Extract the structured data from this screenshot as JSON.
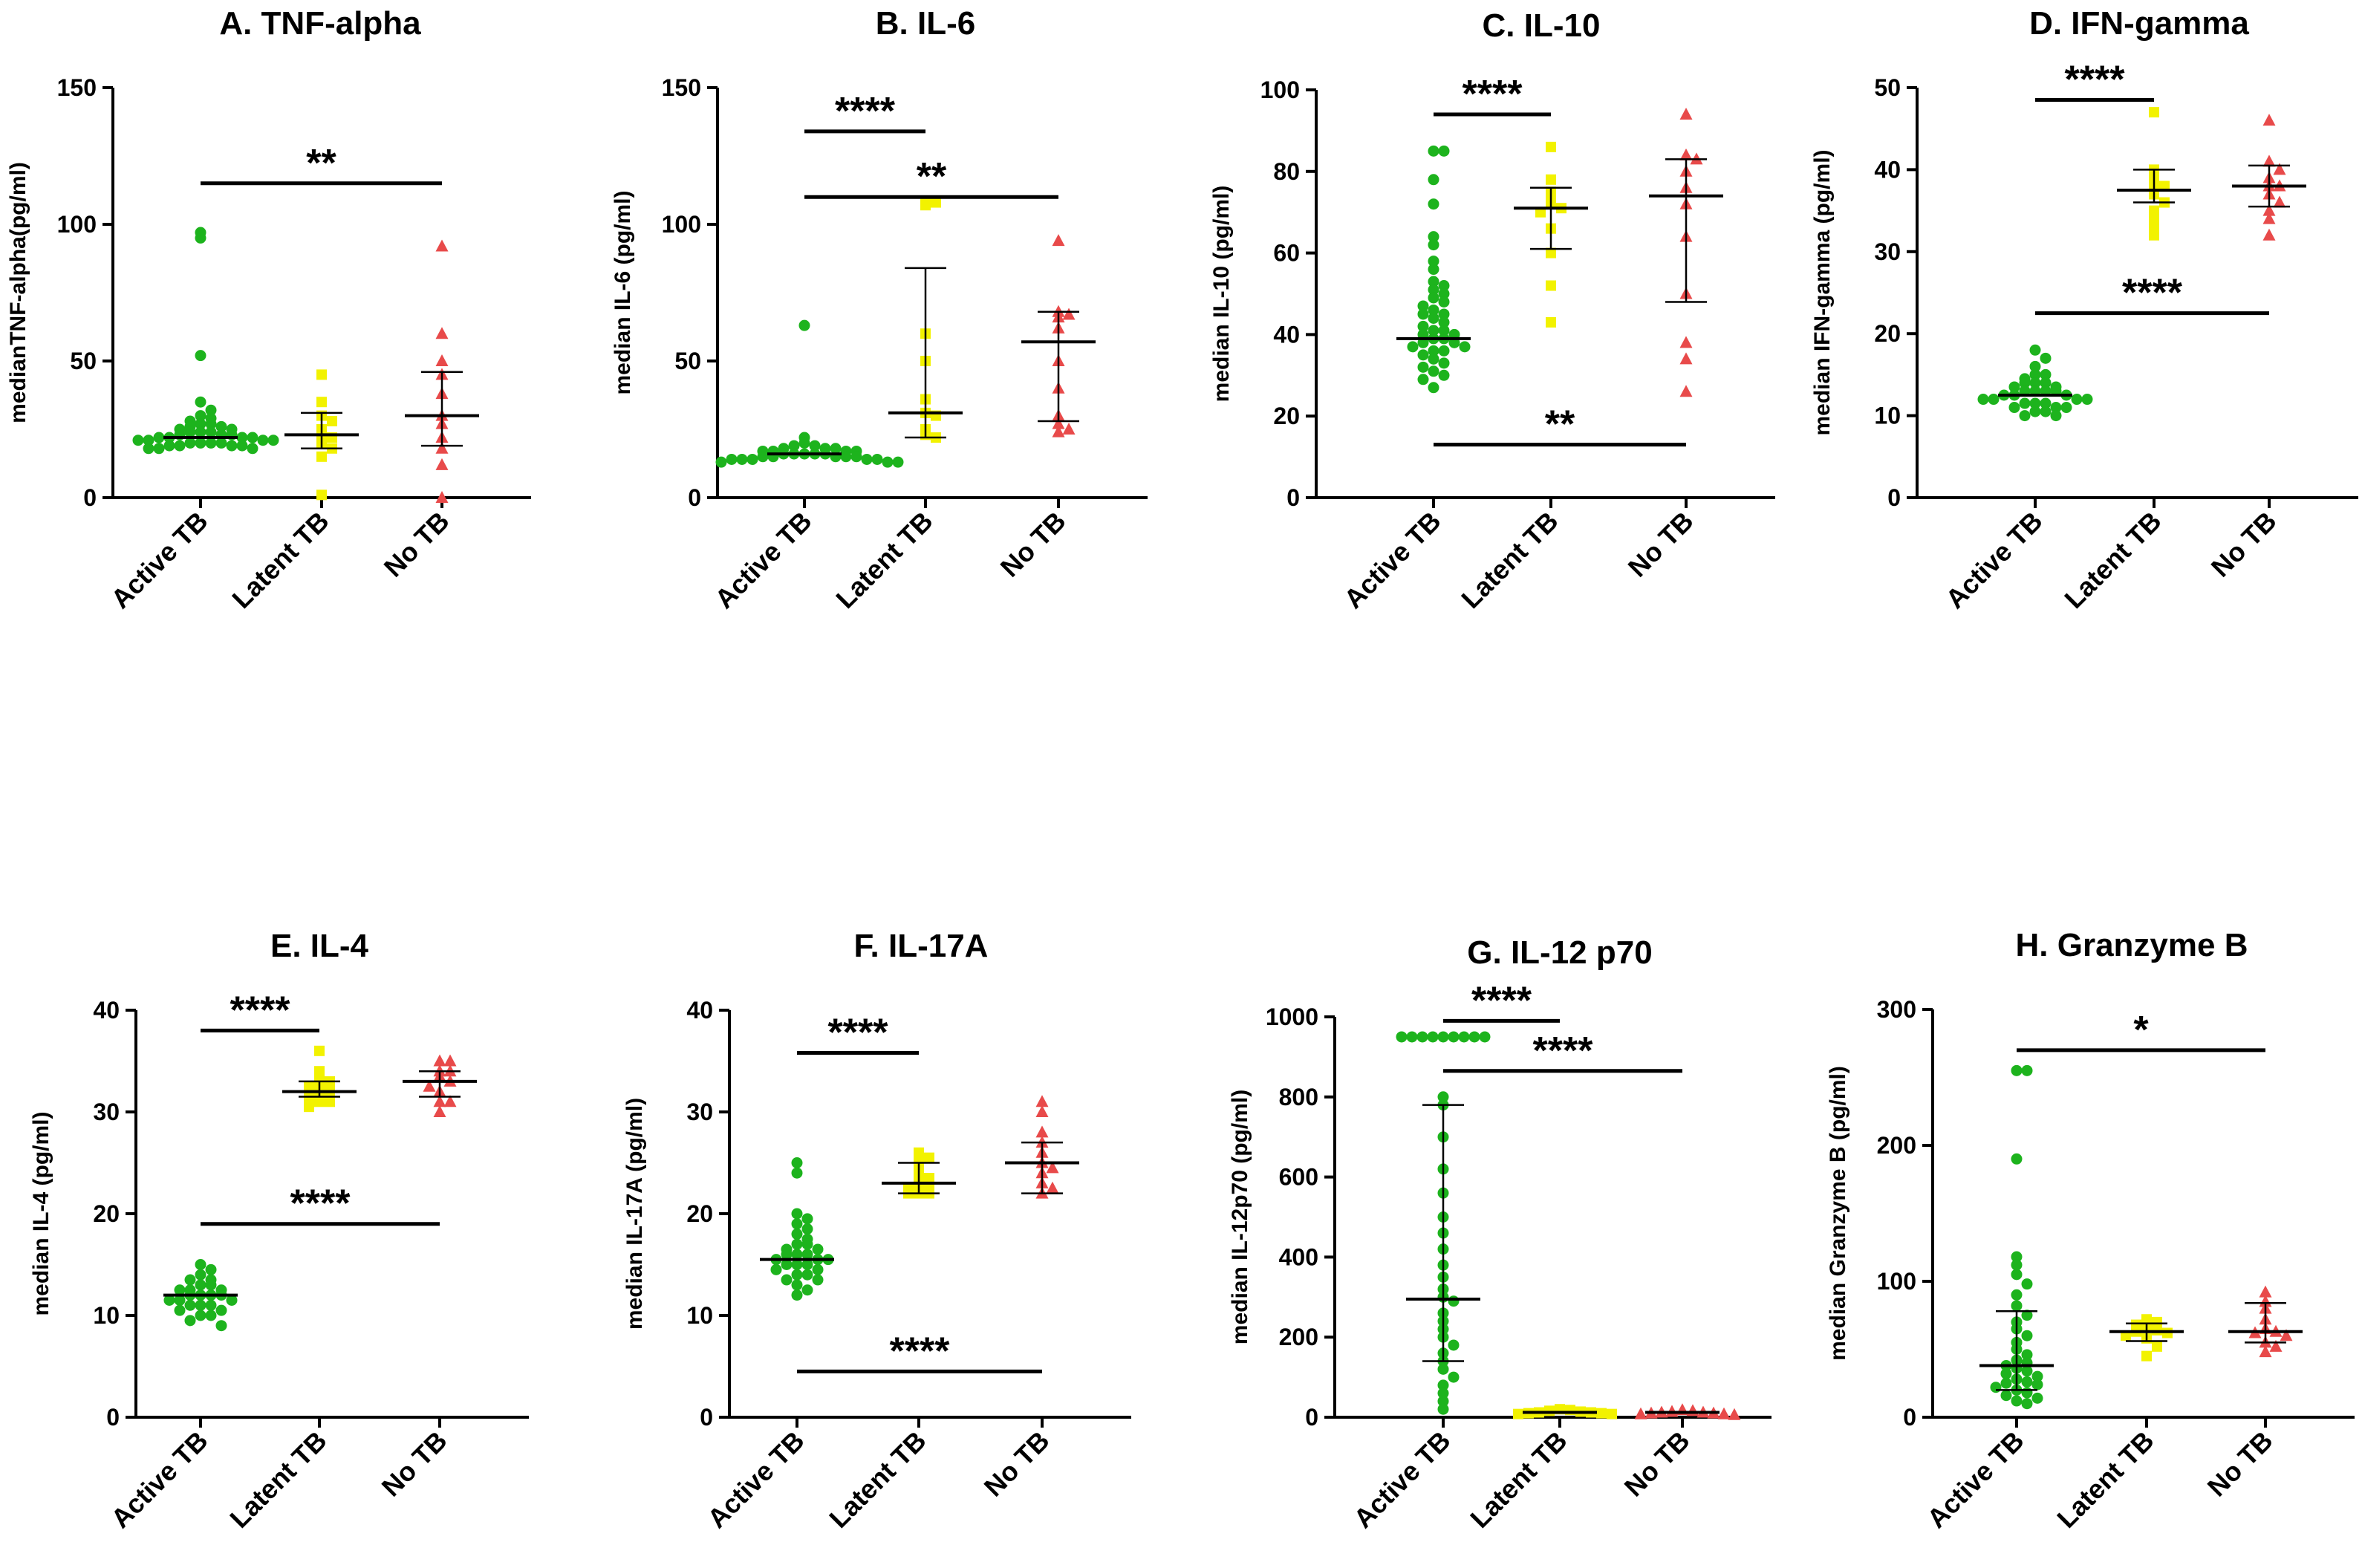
{
  "chart_data": [
    {
      "type": "scatter",
      "title": "A. TNF-alpha",
      "ylabel": "medianTNF-alpha(pg/ml)",
      "ylim": [
        0,
        150
      ],
      "yticks": [
        0,
        50,
        100,
        150
      ],
      "categories": [
        "Active TB",
        "Latent TB",
        "No TB"
      ],
      "colors": [
        "#1db31d",
        "#f2f200",
        "#e84a4a"
      ],
      "series": [
        {
          "name": "Active TB",
          "marker": "circle",
          "median": 22,
          "values": [
            97,
            95,
            52,
            35,
            32,
            30,
            29,
            28,
            27,
            27,
            26,
            26,
            25,
            25,
            24,
            24,
            24,
            23,
            23,
            23,
            22,
            22,
            22,
            22,
            21,
            21,
            21,
            21,
            20,
            20,
            20,
            20,
            19,
            19,
            19,
            19,
            18,
            18,
            18
          ]
        },
        {
          "name": "Latent TB",
          "marker": "square",
          "median": 23,
          "whisker": [
            18,
            31
          ],
          "values": [
            45,
            35,
            30,
            28,
            25,
            23,
            22,
            20,
            18,
            15,
            1
          ]
        },
        {
          "name": "No TB",
          "marker": "triangle",
          "median": 30,
          "whisker": [
            19,
            46
          ],
          "values": [
            92,
            60,
            50,
            45,
            38,
            30,
            27,
            22,
            18,
            12,
            0
          ]
        }
      ],
      "significance": [
        {
          "label": "**",
          "from": "Active TB",
          "to": "No TB",
          "y": 115
        }
      ]
    },
    {
      "type": "scatter",
      "title": "B. IL-6",
      "ylabel": "median IL-6 (pg/ml)",
      "ylim": [
        0,
        150
      ],
      "yticks": [
        0,
        50,
        100,
        150
      ],
      "categories": [
        "Active TB",
        "Latent TB",
        "No TB"
      ],
      "colors": [
        "#1db31d",
        "#f2f200",
        "#e84a4a"
      ],
      "series": [
        {
          "name": "Active TB",
          "marker": "circle",
          "median": 16,
          "values": [
            63,
            22,
            20,
            19,
            19,
            18,
            18,
            18,
            17,
            17,
            17,
            17,
            16,
            16,
            16,
            16,
            16,
            15,
            15,
            15,
            15,
            15,
            14,
            14,
            14,
            14,
            14,
            13,
            13,
            13
          ]
        },
        {
          "name": "Latent TB",
          "marker": "square",
          "median": 31,
          "whisker": [
            22,
            84
          ],
          "values": [
            108,
            108,
            107,
            60,
            50,
            36,
            31,
            30,
            25,
            23,
            22
          ]
        },
        {
          "name": "No TB",
          "marker": "triangle",
          "median": 57,
          "whisker": [
            28,
            68
          ],
          "values": [
            94,
            68,
            67,
            66,
            62,
            50,
            40,
            30,
            27,
            25,
            24
          ]
        }
      ],
      "significance": [
        {
          "label": "****",
          "from": "Active TB",
          "to": "Latent TB",
          "y": 134
        },
        {
          "label": "**",
          "from": "Active TB",
          "to": "No TB",
          "y": 110
        }
      ]
    },
    {
      "type": "scatter",
      "title": "C.  IL-10",
      "ylabel": "median IL-10 (pg/ml)",
      "ylim": [
        0,
        100
      ],
      "yticks": [
        0,
        20,
        40,
        60,
        80,
        100
      ],
      "categories": [
        "Active TB",
        "Latent TB",
        "No TB"
      ],
      "colors": [
        "#1db31d",
        "#f2f200",
        "#e84a4a"
      ],
      "series": [
        {
          "name": "Active TB",
          "marker": "circle",
          "median": 39,
          "values": [
            85,
            85,
            78,
            72,
            64,
            62,
            58,
            56,
            53,
            52,
            51,
            50,
            49,
            48,
            47,
            46,
            45,
            45,
            44,
            43,
            42,
            41,
            41,
            40,
            40,
            39,
            39,
            38,
            38,
            37,
            37,
            36,
            36,
            35,
            34,
            33,
            32,
            31,
            30,
            29,
            27
          ]
        },
        {
          "name": "Latent TB",
          "marker": "square",
          "median": 71,
          "whisker": [
            61,
            76
          ],
          "values": [
            86,
            78,
            75,
            73,
            72,
            71,
            70,
            66,
            60,
            52,
            43
          ]
        },
        {
          "name": "No TB",
          "marker": "triangle",
          "median": 74,
          "whisker": [
            48,
            83
          ],
          "values": [
            94,
            84,
            83,
            80,
            76,
            72,
            64,
            50,
            38,
            34,
            26
          ]
        }
      ],
      "significance": [
        {
          "label": "****",
          "from": "Active TB",
          "to": "Latent TB",
          "y": 94
        },
        {
          "label": "**",
          "from": "Active TB",
          "to": "No TB",
          "y": 13
        }
      ]
    },
    {
      "type": "scatter",
      "title": "D. IFN-gamma",
      "ylabel": "median IFN-gamma (pg/ml)",
      "ylim": [
        0,
        50
      ],
      "yticks": [
        0,
        10,
        20,
        30,
        40,
        50
      ],
      "categories": [
        "Active TB",
        "Latent TB",
        "No TB"
      ],
      "colors": [
        "#1db31d",
        "#f2f200",
        "#e84a4a"
      ],
      "series": [
        {
          "name": "Active TB",
          "marker": "circle",
          "median": 12.5,
          "values": [
            18,
            17,
            16,
            15,
            15,
            14.5,
            14,
            14,
            14,
            13.5,
            13.5,
            13,
            13,
            13,
            13,
            12.5,
            12.5,
            12.5,
            12,
            12,
            12,
            12,
            11.5,
            11.5,
            11.5,
            11,
            11,
            11,
            10.5,
            10.5,
            10,
            10
          ]
        },
        {
          "name": "Latent TB",
          "marker": "square",
          "median": 37.5,
          "whisker": [
            36,
            40
          ],
          "values": [
            47,
            40,
            39,
            38,
            38,
            37,
            36,
            35,
            34,
            33,
            32
          ]
        },
        {
          "name": "No TB",
          "marker": "triangle",
          "median": 38,
          "whisker": [
            35.5,
            40.5
          ],
          "values": [
            46,
            41,
            40,
            39,
            38,
            38,
            37,
            36,
            35,
            34,
            32
          ]
        }
      ],
      "significance": [
        {
          "label": "****",
          "from": "Active TB",
          "to": "Latent TB",
          "y": 48.5
        },
        {
          "label": "****",
          "from": "Active TB",
          "to": "No TB",
          "y": 22.5
        }
      ]
    },
    {
      "type": "scatter",
      "title": "E. IL-4",
      "ylabel": "median IL-4 (pg/ml)",
      "ylim": [
        0,
        40
      ],
      "yticks": [
        0,
        10,
        20,
        30,
        40
      ],
      "categories": [
        "Active TB",
        "Latent TB",
        "No TB"
      ],
      "colors": [
        "#1db31d",
        "#f2f200",
        "#e84a4a"
      ],
      "series": [
        {
          "name": "Active TB",
          "marker": "circle",
          "median": 12,
          "values": [
            15,
            14.5,
            14,
            13.5,
            13.5,
            13,
            13,
            12.5,
            12.5,
            12.5,
            12,
            12,
            12,
            12,
            11.5,
            11.5,
            11.5,
            11,
            11,
            11,
            10.5,
            10.5,
            10,
            10,
            9.5,
            9
          ]
        },
        {
          "name": "Latent TB",
          "marker": "square",
          "median": 32,
          "whisker": [
            31.5,
            33
          ],
          "values": [
            36,
            34,
            33,
            33,
            32.5,
            32,
            32,
            31.5,
            31,
            31,
            30.5
          ]
        },
        {
          "name": "No TB",
          "marker": "triangle",
          "median": 33,
          "whisker": [
            31.5,
            34
          ],
          "values": [
            35,
            35,
            34,
            34,
            33.5,
            33,
            32.5,
            32,
            31,
            31,
            30
          ]
        }
      ],
      "significance": [
        {
          "label": "****",
          "from": "Active TB",
          "to": "Latent TB",
          "y": 38
        },
        {
          "label": "****",
          "from": "Active TB",
          "to": "No TB",
          "y": 19
        }
      ]
    },
    {
      "type": "scatter",
      "title": "F. IL-17A",
      "ylabel": "median IL-17A (pg/ml)",
      "ylim": [
        0,
        40
      ],
      "yticks": [
        0,
        10,
        20,
        30,
        40
      ],
      "categories": [
        "Active TB",
        "Latent TB",
        "No TB"
      ],
      "colors": [
        "#1db31d",
        "#f2f200",
        "#e84a4a"
      ],
      "series": [
        {
          "name": "Active TB",
          "marker": "circle",
          "median": 15.5,
          "values": [
            25,
            24,
            20,
            19.5,
            19,
            18.5,
            18,
            17.5,
            17,
            17,
            16.5,
            16.5,
            16,
            16,
            16,
            15.5,
            15.5,
            15.5,
            15,
            15,
            15,
            14.5,
            14.5,
            14,
            14,
            13.5,
            13.5,
            13,
            12.5,
            12
          ]
        },
        {
          "name": "Latent TB",
          "marker": "square",
          "median": 23,
          "whisker": [
            22,
            25
          ],
          "values": [
            26,
            25.5,
            25,
            24,
            23.5,
            23,
            23,
            22.5,
            22,
            22,
            22
          ]
        },
        {
          "name": "No TB",
          "marker": "triangle",
          "median": 25,
          "whisker": [
            22,
            27
          ],
          "values": [
            31,
            30,
            28,
            27,
            26,
            25,
            24.5,
            24,
            23,
            22.5,
            22
          ]
        }
      ],
      "significance": [
        {
          "label": "****",
          "from": "Active TB",
          "to": "Latent TB",
          "y": 35.8
        },
        {
          "label": "****",
          "from": "Active TB",
          "to": "No TB",
          "y": 4.5
        }
      ]
    },
    {
      "type": "scatter",
      "title": "G. IL-12 p70",
      "ylabel": "median IL-12p70 (pg/ml)",
      "ylim": [
        0,
        1000
      ],
      "yticks": [
        0,
        200,
        400,
        600,
        800,
        1000
      ],
      "categories": [
        "Active TB",
        "Latent TB",
        "No TB"
      ],
      "colors": [
        "#1db31d",
        "#f2f200",
        "#e84a4a"
      ],
      "series": [
        {
          "name": "Active TB",
          "marker": "circle",
          "median": 295,
          "whisker": [
            140,
            780
          ],
          "values": [
            950,
            950,
            950,
            950,
            950,
            950,
            950,
            950,
            950,
            800,
            780,
            700,
            620,
            560,
            500,
            460,
            420,
            380,
            350,
            320,
            300,
            290,
            260,
            240,
            220,
            200,
            180,
            160,
            140,
            120,
            100,
            80,
            60,
            40,
            20
          ]
        },
        {
          "name": "Latent TB",
          "marker": "square",
          "median": 12,
          "values": [
            20,
            18,
            16,
            14,
            12,
            12,
            10,
            10,
            8,
            8
          ]
        },
        {
          "name": "No TB",
          "marker": "triangle",
          "median": 12,
          "values": [
            18,
            16,
            14,
            12,
            12,
            10,
            10,
            8,
            8,
            6
          ]
        }
      ],
      "significance": [
        {
          "label": "****",
          "from": "Active TB",
          "to": "Latent TB",
          "y": 990
        },
        {
          "label": "****",
          "from": "Active TB",
          "to": "No TB",
          "y": 865
        }
      ]
    },
    {
      "type": "scatter",
      "title": "H. Granzyme B",
      "ylabel": "median Granzyme B (pg/ml)",
      "ylim": [
        0,
        300
      ],
      "yticks": [
        0,
        100,
        200,
        300
      ],
      "categories": [
        "Active TB",
        "Latent TB",
        "No TB"
      ],
      "colors": [
        "#1db31d",
        "#f2f200",
        "#e84a4a"
      ],
      "series": [
        {
          "name": "Active TB",
          "marker": "circle",
          "median": 38,
          "whisker": [
            20,
            78
          ],
          "values": [
            255,
            255,
            190,
            118,
            112,
            105,
            98,
            90,
            82,
            75,
            70,
            65,
            60,
            55,
            50,
            46,
            42,
            40,
            38,
            36,
            34,
            32,
            30,
            28,
            26,
            25,
            24,
            22,
            20,
            18,
            16,
            14,
            12,
            10
          ]
        },
        {
          "name": "Latent TB",
          "marker": "square",
          "median": 63,
          "whisker": [
            56,
            69
          ],
          "values": [
            72,
            70,
            68,
            66,
            64,
            63,
            62,
            60,
            58,
            52,
            45
          ]
        },
        {
          "name": "No TB",
          "marker": "triangle",
          "median": 63,
          "whisker": [
            55,
            84
          ],
          "values": [
            92,
            85,
            80,
            72,
            65,
            63,
            62,
            60,
            55,
            52,
            48
          ]
        }
      ],
      "significance": [
        {
          "label": "*",
          "from": "Active TB",
          "to": "No TB",
          "y": 270
        }
      ]
    }
  ]
}
